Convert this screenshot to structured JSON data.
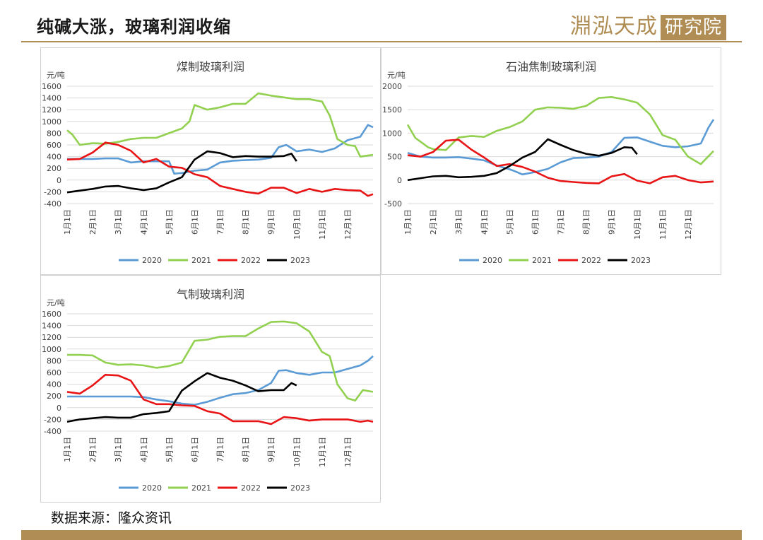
{
  "header": {
    "title": "纯碱大涨，玻璃利润收缩",
    "logo_text": "淵泓天成",
    "logo_boxed": "研究院"
  },
  "footer": {
    "source": "数据来源：隆众资讯"
  },
  "colors": {
    "2020": "#5b9bd5",
    "2021": "#92d050",
    "2022": "#e81416",
    "2023": "#000000"
  },
  "chart_data": [
    {
      "type": "line",
      "title": "煤制玻璃利润",
      "unit": "元/吨",
      "ylim": [
        -400,
        1600
      ],
      "yticks": [
        -400,
        -200,
        0,
        200,
        400,
        600,
        800,
        1000,
        1200,
        1400,
        1600
      ],
      "xlim": [
        0,
        12
      ],
      "xticks": [
        "1月1日",
        "2月1日",
        "3月1日",
        "4月1日",
        "5月1日",
        "6月1日",
        "7月1日",
        "8月1日",
        "9月1日",
        "10月1日",
        "11月1日",
        "12月1日"
      ],
      "legend_position": "bottom",
      "grid": true,
      "series": [
        {
          "name": "2020",
          "x": [
            0,
            0.5,
            1,
            1.5,
            2,
            2.5,
            3,
            3.5,
            4,
            4.2,
            4.5,
            5,
            5.5,
            6,
            6.5,
            7,
            7.5,
            8,
            8.3,
            8.6,
            9,
            9.5,
            10,
            10.5,
            11,
            11.5,
            11.8,
            12
          ],
          "y": [
            360,
            360,
            360,
            370,
            370,
            300,
            320,
            320,
            320,
            110,
            120,
            160,
            180,
            300,
            330,
            340,
            350,
            380,
            560,
            600,
            490,
            520,
            480,
            540,
            680,
            740,
            940,
            900
          ]
        },
        {
          "name": "2021",
          "x": [
            0,
            0.2,
            0.5,
            1,
            1.5,
            2,
            2.5,
            3,
            3.5,
            4,
            4.5,
            4.8,
            5,
            5.5,
            6,
            6.5,
            7,
            7.5,
            8,
            8.5,
            9,
            9.5,
            10,
            10.3,
            10.6,
            11,
            11.3,
            11.5,
            12
          ],
          "y": [
            850,
            780,
            600,
            630,
            620,
            650,
            700,
            720,
            720,
            800,
            880,
            1000,
            1280,
            1200,
            1240,
            1300,
            1300,
            1480,
            1440,
            1410,
            1380,
            1380,
            1340,
            1100,
            700,
            600,
            580,
            400,
            430
          ]
        },
        {
          "name": "2022",
          "x": [
            0,
            0.5,
            1,
            1.5,
            2,
            2.5,
            3,
            3.5,
            4,
            4.5,
            5,
            5.5,
            6,
            6.5,
            7,
            7.5,
            8,
            8.5,
            9,
            9.5,
            10,
            10.5,
            11,
            11.5,
            11.8,
            12
          ],
          "y": [
            350,
            360,
            470,
            640,
            600,
            500,
            300,
            360,
            230,
            210,
            100,
            50,
            -100,
            -150,
            -200,
            -230,
            -130,
            -130,
            -220,
            -150,
            -200,
            -150,
            -170,
            -180,
            -270,
            -240
          ]
        },
        {
          "name": "2023",
          "x": [
            0,
            0.5,
            1,
            1.5,
            2,
            2.5,
            3,
            3.5,
            4,
            4.5,
            5,
            5.5,
            6,
            6.5,
            7,
            7.5,
            8,
            8.5,
            8.8,
            9
          ],
          "y": [
            -210,
            -180,
            -150,
            -110,
            -100,
            -140,
            -170,
            -140,
            -40,
            50,
            350,
            490,
            460,
            390,
            410,
            400,
            400,
            410,
            450,
            320
          ]
        }
      ]
    },
    {
      "type": "line",
      "title": "石油焦制玻璃利润",
      "unit": "元/吨",
      "ylim": [
        -500,
        2000
      ],
      "yticks": [
        -500,
        0,
        500,
        1000,
        1500,
        2000
      ],
      "xlim": [
        0,
        12
      ],
      "xticks": [
        "1月1日",
        "2月1日",
        "3月1日",
        "4月1日",
        "5月1日",
        "6月1日",
        "7月1日",
        "8月1日",
        "9月1日",
        "10月1日",
        "11月1日",
        "12月1日"
      ],
      "legend_position": "bottom",
      "grid": true,
      "series": [
        {
          "name": "2020",
          "x": [
            0,
            0.5,
            1,
            1.5,
            2,
            2.5,
            3,
            3.5,
            4,
            4.2,
            4.5,
            5,
            5.5,
            6,
            6.5,
            7,
            7.5,
            8,
            8.5,
            9,
            9.5,
            10,
            10.5,
            11,
            11.5,
            11.8,
            12
          ],
          "y": [
            580,
            500,
            480,
            480,
            490,
            460,
            420,
            310,
            230,
            190,
            120,
            170,
            240,
            380,
            470,
            480,
            500,
            600,
            900,
            910,
            820,
            730,
            700,
            720,
            780,
            1120,
            1290
          ]
        },
        {
          "name": "2021",
          "x": [
            0,
            0.3,
            0.8,
            1,
            1.5,
            2,
            2.5,
            3,
            3.5,
            4,
            4.5,
            5,
            5.5,
            6,
            6.5,
            7,
            7.5,
            8,
            8.5,
            9,
            9.5,
            10,
            10.5,
            11,
            11.5,
            12
          ],
          "y": [
            1180,
            900,
            700,
            660,
            640,
            910,
            940,
            920,
            1050,
            1130,
            1250,
            1500,
            1550,
            1540,
            1520,
            1580,
            1750,
            1770,
            1720,
            1650,
            1400,
            960,
            860,
            500,
            340,
            620
          ]
        },
        {
          "name": "2022",
          "x": [
            0,
            0.5,
            1,
            1.5,
            2,
            2.5,
            3,
            3.5,
            4,
            4.5,
            5,
            5.5,
            6,
            6.5,
            7,
            7.5,
            8,
            8.5,
            9,
            9.5,
            10,
            10.5,
            11,
            11.5,
            12
          ],
          "y": [
            530,
            500,
            600,
            840,
            860,
            650,
            480,
            300,
            340,
            280,
            180,
            50,
            -20,
            -40,
            -60,
            -70,
            80,
            130,
            -10,
            -70,
            60,
            90,
            0,
            -50,
            -30
          ]
        },
        {
          "name": "2023",
          "x": [
            0,
            0.5,
            1,
            1.5,
            2,
            2.5,
            3,
            3.5,
            4,
            4.5,
            5,
            5.5,
            6,
            6.5,
            7,
            7.5,
            8,
            8.5,
            8.8,
            9
          ],
          "y": [
            0,
            40,
            80,
            90,
            60,
            70,
            90,
            150,
            300,
            480,
            600,
            870,
            750,
            640,
            560,
            520,
            580,
            700,
            690,
            550
          ]
        }
      ]
    },
    {
      "type": "line",
      "title": "气制玻璃利润",
      "unit": "元/吨",
      "ylim": [
        -400,
        1600
      ],
      "yticks": [
        -400,
        -200,
        0,
        200,
        400,
        600,
        800,
        1000,
        1200,
        1400,
        1600
      ],
      "xlim": [
        0,
        12
      ],
      "xticks": [
        "1月1日",
        "2月1日",
        "3月1日",
        "4月1日",
        "5月1日",
        "6月1日",
        "7月1日",
        "8月1日",
        "9月1日",
        "10月1日",
        "11月1日",
        "12月1日"
      ],
      "legend_position": "bottom",
      "grid": true,
      "series": [
        {
          "name": "2020",
          "x": [
            0,
            0.5,
            1,
            1.5,
            2,
            2.5,
            3,
            3.5,
            4,
            4.5,
            5,
            5.5,
            6,
            6.5,
            7,
            7.5,
            8,
            8.3,
            8.6,
            9,
            9.5,
            10,
            10.5,
            11,
            11.5,
            11.8,
            12
          ],
          "y": [
            190,
            190,
            190,
            190,
            190,
            190,
            180,
            140,
            110,
            70,
            50,
            100,
            170,
            230,
            250,
            300,
            420,
            630,
            640,
            590,
            560,
            600,
            600,
            660,
            720,
            800,
            880
          ]
        },
        {
          "name": "2021",
          "x": [
            0,
            0.5,
            1,
            1.5,
            2,
            2.5,
            3,
            3.5,
            4,
            4.5,
            5,
            5.5,
            6,
            6.5,
            7,
            7.5,
            8,
            8.5,
            9,
            9.5,
            10,
            10.3,
            10.6,
            11,
            11.3,
            11.6,
            12
          ],
          "y": [
            900,
            900,
            890,
            770,
            730,
            740,
            720,
            680,
            710,
            770,
            1140,
            1160,
            1210,
            1220,
            1220,
            1350,
            1460,
            1470,
            1440,
            1300,
            950,
            880,
            400,
            160,
            120,
            300,
            270
          ]
        },
        {
          "name": "2022",
          "x": [
            0,
            0.5,
            1,
            1.5,
            2,
            2.5,
            3,
            3.5,
            4,
            4.5,
            5,
            5.5,
            6,
            6.5,
            7,
            7.5,
            8,
            8.5,
            9,
            9.5,
            10,
            10.5,
            11,
            11.5,
            11.8,
            12
          ],
          "y": [
            270,
            240,
            380,
            560,
            550,
            460,
            140,
            60,
            60,
            40,
            30,
            -60,
            -100,
            -230,
            -230,
            -230,
            -280,
            -160,
            -180,
            -220,
            -200,
            -200,
            -200,
            -240,
            -220,
            -240
          ]
        },
        {
          "name": "2023",
          "x": [
            0,
            0.5,
            1,
            1.5,
            2,
            2.5,
            3,
            3.5,
            4,
            4.5,
            5,
            5.5,
            6,
            6.5,
            7,
            7.5,
            8,
            8.5,
            8.8,
            9
          ],
          "y": [
            -240,
            -200,
            -180,
            -160,
            -170,
            -170,
            -110,
            -90,
            -60,
            290,
            450,
            590,
            510,
            460,
            380,
            280,
            300,
            300,
            420,
            380
          ]
        }
      ]
    }
  ]
}
